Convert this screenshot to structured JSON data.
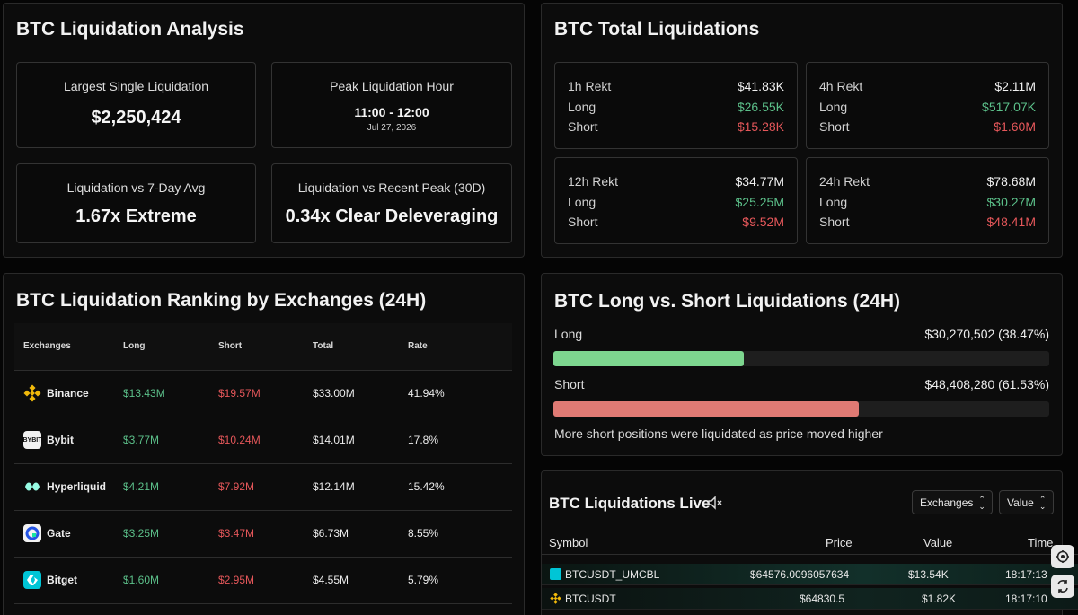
{
  "analysis": {
    "title": "BTC Liquidation Analysis",
    "cards": [
      {
        "label": "Largest Single Liquidation",
        "value": "$2,250,424",
        "sub": ""
      },
      {
        "label": "Peak Liquidation Hour",
        "value": "11:00 - 12:00",
        "sub": "Jul 27, 2026"
      },
      {
        "label": "Liquidation vs 7-Day Avg",
        "value": "1.67x Extreme",
        "sub": ""
      },
      {
        "label": "Liquidation vs Recent Peak (30D)",
        "value": "0.34x Clear Deleveraging",
        "sub": ""
      }
    ]
  },
  "total": {
    "title": "BTC Total Liquidations",
    "long_label": "Long",
    "short_label": "Short",
    "blocks": [
      {
        "label": "1h Rekt",
        "total": "$41.83K",
        "long": "$26.55K",
        "short": "$15.28K"
      },
      {
        "label": "4h Rekt",
        "total": "$2.11M",
        "long": "$517.07K",
        "short": "$1.60M"
      },
      {
        "label": "12h Rekt",
        "total": "$34.77M",
        "long": "$25.25M",
        "short": "$9.52M"
      },
      {
        "label": "24h Rekt",
        "total": "$78.68M",
        "long": "$30.27M",
        "short": "$48.41M"
      }
    ]
  },
  "ranking": {
    "title": "BTC Liquidation Ranking by Exchanges (24H)",
    "columns": [
      "Exchanges",
      "Long",
      "Short",
      "Total",
      "Rate"
    ],
    "rows": [
      {
        "name": "Binance",
        "icon": "binance-icon",
        "long": "$13.43M",
        "short": "$19.57M",
        "total": "$33.00M",
        "rate": "41.94%"
      },
      {
        "name": "Bybit",
        "icon": "bybit-icon",
        "long": "$3.77M",
        "short": "$10.24M",
        "total": "$14.01M",
        "rate": "17.8%"
      },
      {
        "name": "Hyperliquid",
        "icon": "hyperliquid-icon",
        "long": "$4.21M",
        "short": "$7.92M",
        "total": "$12.14M",
        "rate": "15.42%"
      },
      {
        "name": "Gate",
        "icon": "gate-icon",
        "long": "$3.25M",
        "short": "$3.47M",
        "total": "$6.73M",
        "rate": "8.55%"
      },
      {
        "name": "Bitget",
        "icon": "bitget-icon",
        "long": "$1.60M",
        "short": "$2.95M",
        "total": "$4.55M",
        "rate": "5.79%"
      }
    ]
  },
  "longshort": {
    "title": "BTC Long vs. Short Liquidations (24H)",
    "long_label": "Long",
    "long_value": "$30,270,502 (38.47%)",
    "long_pct": 38.47,
    "short_label": "Short",
    "short_value": "$48,408,280 (61.53%)",
    "short_pct": 61.53,
    "note": "More short positions were liquidated as price moved higher",
    "long_color": "#7dd68f",
    "short_color": "#e07a74"
  },
  "live": {
    "title": "BTC Liquidations Live",
    "exchanges_select": "Exchanges",
    "value_select": "Value",
    "columns": [
      "Symbol",
      "Price",
      "Value",
      "Time"
    ],
    "rows": [
      {
        "symbol": "BTCUSDT_UMCBL",
        "icon": "bitget-icon",
        "price": "$64576.0096057634",
        "value": "$13.54K",
        "time": "18:17:13"
      },
      {
        "symbol": "BTCUSDT",
        "icon": "binance-icon",
        "price": "$64830.5",
        "value": "$1.82K",
        "time": "18:17:10"
      }
    ]
  }
}
